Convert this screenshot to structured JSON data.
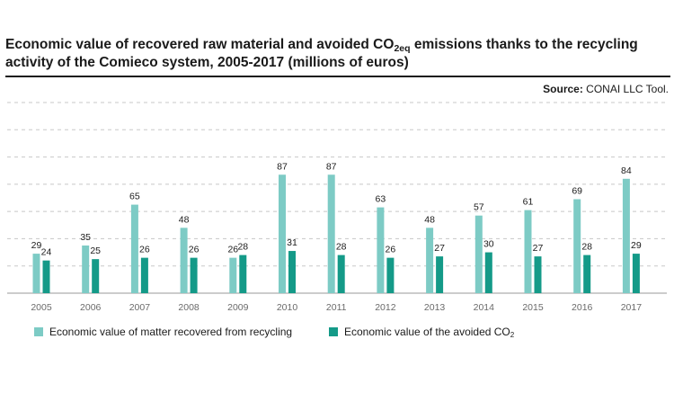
{
  "title_main": "Economic value of recovered raw material and avoided CO",
  "title_sub": "2eq",
  "title_tail": " emissions thanks to the recycling activity of the Comieco system, 2005-2017 (millions of euros)",
  "source_label": "Source:",
  "source_value": " CONAI LLC Tool.",
  "legend": {
    "item1": "Economic value of matter recovered from recycling",
    "item2_main": "Economic value of the avoided CO",
    "item2_sub": "2"
  },
  "colors": {
    "series1": "#7dcbc5",
    "series2": "#149a88",
    "grid": "#c8c8c8",
    "axis": "#9a9a9a"
  },
  "chart_data": {
    "type": "bar",
    "categories": [
      "2005",
      "2006",
      "2007",
      "2008",
      "2009",
      "2010",
      "2011",
      "2012",
      "2013",
      "2014",
      "2015",
      "2016",
      "2017"
    ],
    "series": [
      {
        "name": "Economic value of matter recovered from recycling",
        "values": [
          29,
          35,
          65,
          48,
          26,
          87,
          87,
          63,
          48,
          57,
          61,
          69,
          84
        ]
      },
      {
        "name": "Economic value of the avoided CO2",
        "values": [
          24,
          25,
          26,
          26,
          28,
          31,
          28,
          26,
          27,
          30,
          27,
          28,
          29
        ]
      }
    ],
    "ylim": [
      0,
      140
    ],
    "grid": true,
    "legend_position": "bottom"
  }
}
